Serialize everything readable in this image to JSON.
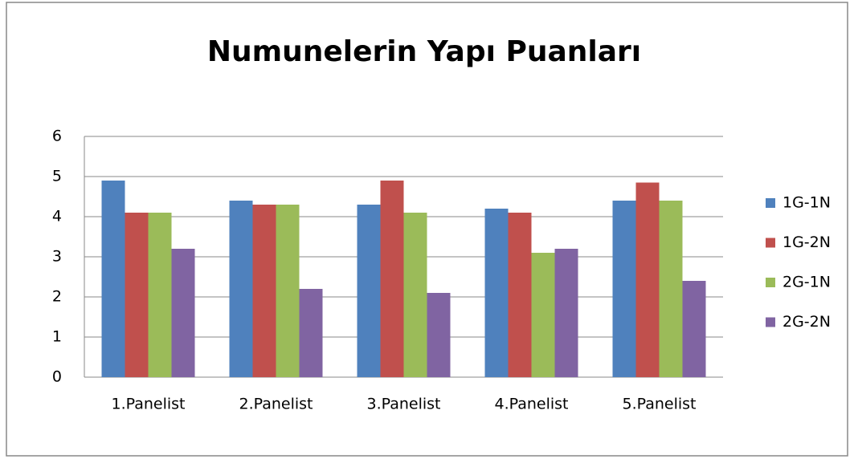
{
  "chart_data": {
    "type": "bar",
    "title": "Numunelerin Yapı Puanları",
    "categories": [
      "1.Panelist",
      "2.Panelist",
      "3.Panelist",
      "4.Panelist",
      "5.Panelist"
    ],
    "series": [
      {
        "name": "1G-1N",
        "color": "#4f81bd",
        "values": [
          4.9,
          4.4,
          4.3,
          4.2,
          4.4
        ]
      },
      {
        "name": "1G-2N",
        "color": "#c0504d",
        "values": [
          4.1,
          4.3,
          4.9,
          4.1,
          4.85
        ]
      },
      {
        "name": "2G-1N",
        "color": "#9bbb59",
        "values": [
          4.1,
          4.3,
          4.1,
          3.1,
          4.4
        ]
      },
      {
        "name": "2G-2N",
        "color": "#8064a2",
        "values": [
          3.2,
          2.2,
          2.1,
          3.2,
          2.4
        ]
      }
    ],
    "ylim": [
      0,
      6
    ],
    "yticks": [
      0,
      1,
      2,
      3,
      4,
      5,
      6
    ],
    "grid": true,
    "legend": "right"
  }
}
